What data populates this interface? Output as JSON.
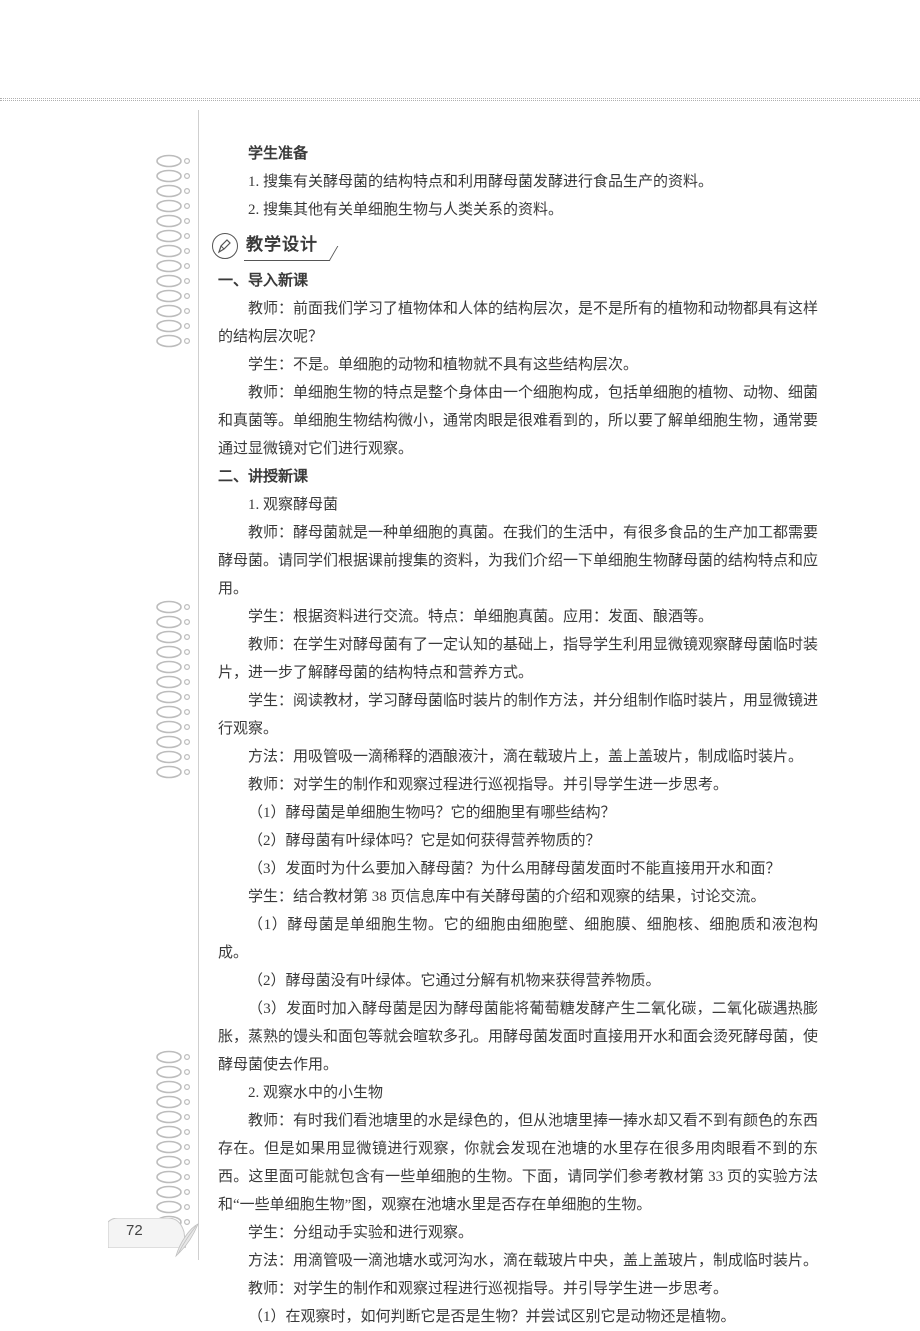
{
  "page": {
    "number": "72"
  },
  "colors": {
    "text": "#3a3a3a",
    "spiral": "#bfbfbf",
    "line": "#cfcfcf",
    "badge_border": "#555555",
    "tab_fill": "#f2f2f2",
    "tab_stroke": "#bdbdbd"
  },
  "header": {
    "student_prep": "学生准备",
    "prep1": "1. 搜集有关酵母菌的结构特点和利用酵母菌发酵进行食品生产的资料。",
    "prep2": "2. 搜集其他有关单细胞生物与人类关系的资料。"
  },
  "section_badge": {
    "label": "教学设计"
  },
  "s1": {
    "h": "一、导入新课",
    "t1": "教师：前面我们学习了植物体和人体的结构层次，是不是所有的植物和动物都具有这样的结构层次呢？",
    "t2": "学生：不是。单细胞的动物和植物就不具有这些结构层次。",
    "t3": "教师：单细胞生物的特点是整个身体由一个细胞构成，包括单细胞的植物、动物、细菌和真菌等。单细胞生物结构微小，通常肉眼是很难看到的，所以要了解单细胞生物，通常要通过显微镜对它们进行观察。"
  },
  "s2": {
    "h": "二、讲授新课",
    "sub1": "1. 观察酵母菌",
    "t1": "教师：酵母菌就是一种单细胞的真菌。在我们的生活中，有很多食品的生产加工都需要酵母菌。请同学们根据课前搜集的资料，为我们介绍一下单细胞生物酵母菌的结构特点和应用。",
    "t2": "学生：根据资料进行交流。特点：单细胞真菌。应用：发面、酿酒等。",
    "t3": "教师：在学生对酵母菌有了一定认知的基础上，指导学生利用显微镜观察酵母菌临时装片，进一步了解酵母菌的结构特点和营养方式。",
    "t4": "学生：阅读教材，学习酵母菌临时装片的制作方法，并分组制作临时装片，用显微镜进行观察。",
    "t5": "方法：用吸管吸一滴稀释的酒酿液汁，滴在载玻片上，盖上盖玻片，制成临时装片。",
    "t6": "教师：对学生的制作和观察过程进行巡视指导。并引导学生进一步思考。",
    "q1": "（1）酵母菌是单细胞生物吗？它的细胞里有哪些结构？",
    "q2": "（2）酵母菌有叶绿体吗？它是如何获得营养物质的？",
    "q3": "（3）发面时为什么要加入酵母菌？为什么用酵母菌发面时不能直接用开水和面？",
    "t7": "学生：结合教材第 38 页信息库中有关酵母菌的介绍和观察的结果，讨论交流。",
    "a1": "（1）酵母菌是单细胞生物。它的细胞由细胞壁、细胞膜、细胞核、细胞质和液泡构成。",
    "a2": "（2）酵母菌没有叶绿体。它通过分解有机物来获得营养物质。",
    "a3": "（3）发面时加入酵母菌是因为酵母菌能将葡萄糖发酵产生二氧化碳，二氧化碳遇热膨胀，蒸熟的馒头和面包等就会暄软多孔。用酵母菌发面时直接用开水和面会烫死酵母菌，使酵母菌使去作用。",
    "sub2": "2. 观察水中的小生物",
    "t8": "教师：有时我们看池塘里的水是绿色的，但从池塘里捧一捧水却又看不到有颜色的东西存在。但是如果用显微镜进行观察，你就会发现在池塘的水里存在很多用肉眼看不到的东西。这里面可能就包含有一些单细胞的生物。下面，请同学们参考教材第 33 页的实验方法和“一些单细胞生物”图，观察在池塘水里是否存在单细胞的生物。",
    "t9": "学生：分组动手实验和进行观察。",
    "t10": "方法：用滴管吸一滴池塘水或河沟水，滴在载玻片中央，盖上盖玻片，制成临时装片。",
    "t11": "教师：对学生的制作和观察过程进行巡视指导。并引导学生进一步思考。",
    "q4": "（1）在观察时，如何判断它是否是生物？并尝试区别它是动物还是植物。"
  }
}
